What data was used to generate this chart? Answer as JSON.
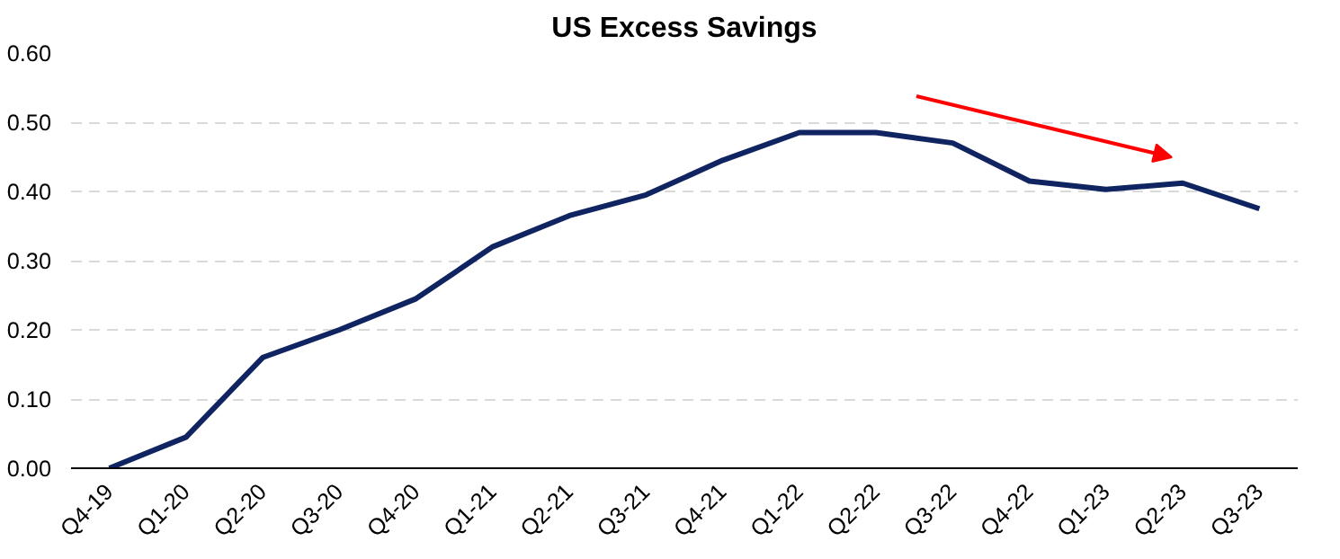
{
  "chart_data": {
    "type": "line",
    "title": "US Excess Savings",
    "categories": [
      "Q4-19",
      "Q1-20",
      "Q2-20",
      "Q3-20",
      "Q4-20",
      "Q1-21",
      "Q2-21",
      "Q3-21",
      "Q4-21",
      "Q1-22",
      "Q2-22",
      "Q3-22",
      "Q4-22",
      "Q1-23",
      "Q2-23",
      "Q3-23"
    ],
    "series": [
      {
        "color": "#0f2461",
        "values": [
          0.0,
          0.045,
          0.16,
          0.2,
          0.245,
          0.32,
          0.365,
          0.395,
          0.445,
          0.485,
          0.485,
          0.47,
          0.415,
          0.403,
          0.412,
          0.375
        ]
      }
    ],
    "ylim": [
      0,
      0.6
    ],
    "yticks": [
      {
        "value": 0,
        "label": "0.00"
      },
      {
        "value": 0.1,
        "label": "0.10"
      },
      {
        "value": 0.2,
        "label": "0.20"
      },
      {
        "value": 0.3,
        "label": "0.30"
      },
      {
        "value": 0.4,
        "label": "0.40"
      },
      {
        "value": 0.5,
        "label": "0.50"
      },
      {
        "value": 0.6,
        "label": "0.60"
      }
    ],
    "grid": "y",
    "marker": "none",
    "line_style": "solid"
  }
}
